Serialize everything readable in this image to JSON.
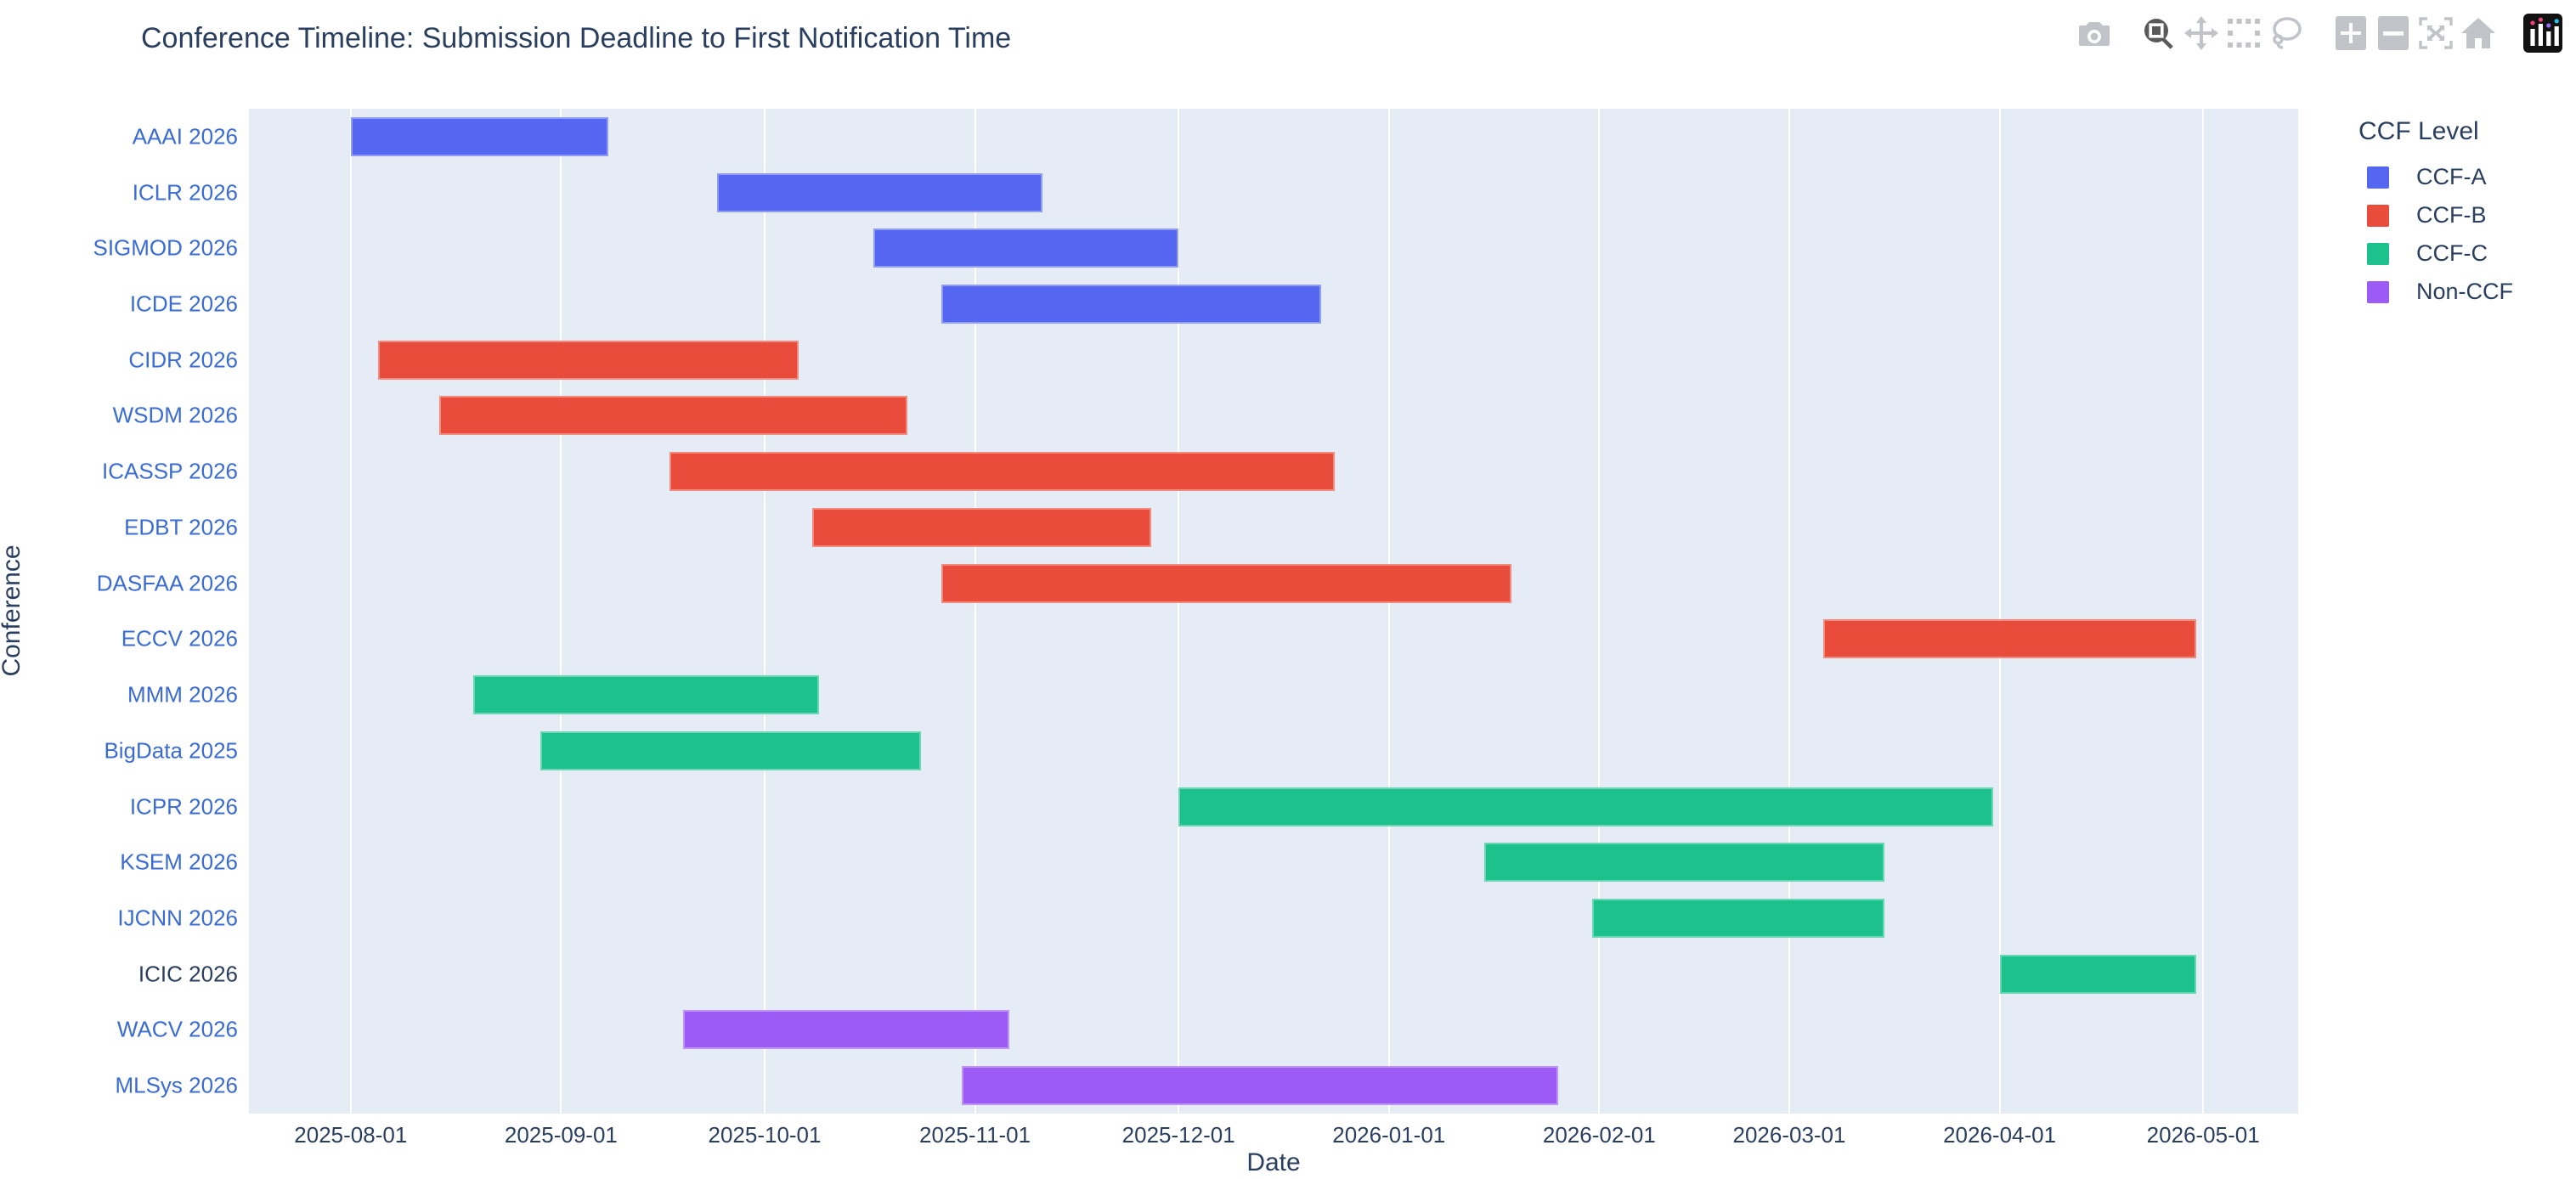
{
  "title": "Conference Timeline: Submission Deadline to First Notification Time",
  "toolbar": {
    "icons": [
      "camera",
      "zoom",
      "pan",
      "box-select",
      "lasso",
      "zoom-in",
      "zoom-out",
      "autoscale",
      "home",
      "plotly-logo"
    ]
  },
  "legend": {
    "title": "CCF Level"
  },
  "chart_data": {
    "type": "gantt",
    "title": "Conference Timeline: Submission Deadline to First Notification Time",
    "xlabel": "Date",
    "ylabel": "Conference",
    "x_range": [
      "2025-07-17",
      "2026-05-15"
    ],
    "x_ticks": [
      "2025-08-01",
      "2025-09-01",
      "2025-10-01",
      "2025-11-01",
      "2025-12-01",
      "2026-01-01",
      "2026-02-01",
      "2026-03-01",
      "2026-04-01",
      "2026-05-01"
    ],
    "levels": [
      {
        "label": "CCF-A",
        "color": "#5567F0"
      },
      {
        "label": "CCF-B",
        "color": "#EA4C3B"
      },
      {
        "label": "CCF-C",
        "color": "#1DC18C"
      },
      {
        "label": "Non-CCF",
        "color": "#9D5BF5"
      }
    ],
    "rows": [
      {
        "conference": "AAAI 2026",
        "level": "CCF-A",
        "start": "2025-08-01",
        "end": "2025-09-08"
      },
      {
        "conference": "ICLR 2026",
        "level": "CCF-A",
        "start": "2025-09-24",
        "end": "2025-11-11"
      },
      {
        "conference": "SIGMOD 2026",
        "level": "CCF-A",
        "start": "2025-10-17",
        "end": "2025-12-01"
      },
      {
        "conference": "ICDE 2026",
        "level": "CCF-A",
        "start": "2025-10-27",
        "end": "2025-12-22"
      },
      {
        "conference": "CIDR 2026",
        "level": "CCF-B",
        "start": "2025-08-05",
        "end": "2025-10-06"
      },
      {
        "conference": "WSDM 2026",
        "level": "CCF-B",
        "start": "2025-08-14",
        "end": "2025-10-22"
      },
      {
        "conference": "ICASSP 2026",
        "level": "CCF-B",
        "start": "2025-09-17",
        "end": "2025-12-24"
      },
      {
        "conference": "EDBT 2026",
        "level": "CCF-B",
        "start": "2025-10-08",
        "end": "2025-11-27"
      },
      {
        "conference": "DASFAA 2026",
        "level": "CCF-B",
        "start": "2025-10-27",
        "end": "2026-01-19"
      },
      {
        "conference": "ECCV 2026",
        "level": "CCF-B",
        "start": "2026-03-06",
        "end": "2026-04-30"
      },
      {
        "conference": "MMM 2026",
        "level": "CCF-C",
        "start": "2025-08-19",
        "end": "2025-10-09"
      },
      {
        "conference": "BigData 2025",
        "level": "CCF-C",
        "start": "2025-08-29",
        "end": "2025-10-24"
      },
      {
        "conference": "ICPR 2026",
        "level": "CCF-C",
        "start": "2025-12-01",
        "end": "2026-03-31"
      },
      {
        "conference": "KSEM 2026",
        "level": "CCF-C",
        "start": "2026-01-15",
        "end": "2026-03-15"
      },
      {
        "conference": "IJCNN 2026",
        "level": "CCF-C",
        "start": "2026-01-31",
        "end": "2026-03-15"
      },
      {
        "conference": "ICIC 2026",
        "level": "CCF-C",
        "start": "2026-04-01",
        "end": "2026-04-30",
        "label_color": "#2a3f5f"
      },
      {
        "conference": "WACV 2026",
        "level": "Non-CCF",
        "start": "2025-09-19",
        "end": "2025-11-06"
      },
      {
        "conference": "MLSys 2026",
        "level": "Non-CCF",
        "start": "2025-10-30",
        "end": "2026-01-26"
      }
    ],
    "style": {
      "plot_bg": "#E5ECF6",
      "grid_color": "#ffffff",
      "text_color": "#2a3f5f",
      "ytick_color": "#3a6cd3",
      "bar_height_frac": 0.7
    },
    "legend_position": "top-right-outside",
    "grid": true
  }
}
